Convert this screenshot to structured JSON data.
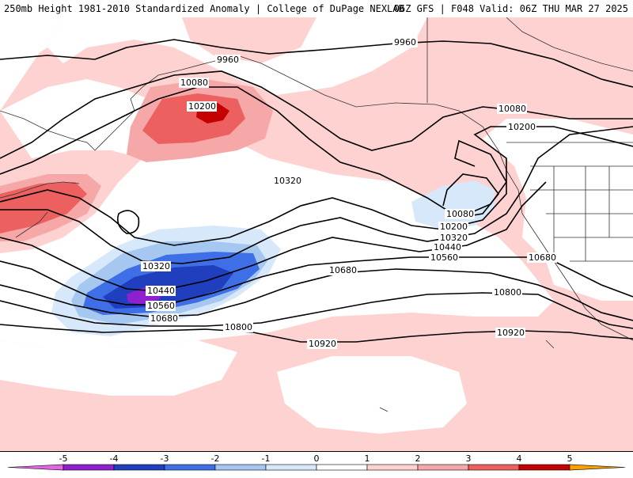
{
  "header": {
    "title_left": "250mb Height 1981-2010 Standardized Anomaly | College of DuPage NEXLAB",
    "title_right": "06Z GFS | F048 Valid: 06Z THU MAR 27 2025"
  },
  "contour_labels": {
    "c9960a": "9960",
    "c9960b": "9960",
    "c10080a": "10080",
    "c10080b": "10080",
    "c10080c": "10080",
    "c10200a": "10200",
    "c10200b": "10200",
    "c10200c": "10200",
    "c10320a": "10320",
    "c10320b": "10320",
    "c10320c": "10320",
    "c10440a": "10440",
    "c10440b": "10440",
    "c10560a": "10560",
    "c10560b": "10560",
    "c10680a": "10680",
    "c10680b": "10680",
    "c10680c": "10680",
    "c10800a": "10800",
    "c10800b": "10800",
    "c10920a": "10920",
    "c10920b": "10920"
  },
  "colorbar": {
    "ticks": [
      "-5",
      "-4",
      "-3",
      "-2",
      "-1",
      "0",
      "1",
      "2",
      "3",
      "4",
      "5"
    ],
    "colors": {
      "m5": "#e066e6",
      "m4": "#8f1fcf",
      "m3": "#1f3fbf",
      "m2": "#3f6fe6",
      "m1": "#a6c8f0",
      "m0": "#d6e8fa",
      "p0": "#ffffff",
      "p1": "#ffd2d2",
      "p2": "#f6a8a8",
      "p3": "#ec6060",
      "p4": "#c40000",
      "p5": "#f7a000"
    }
  }
}
